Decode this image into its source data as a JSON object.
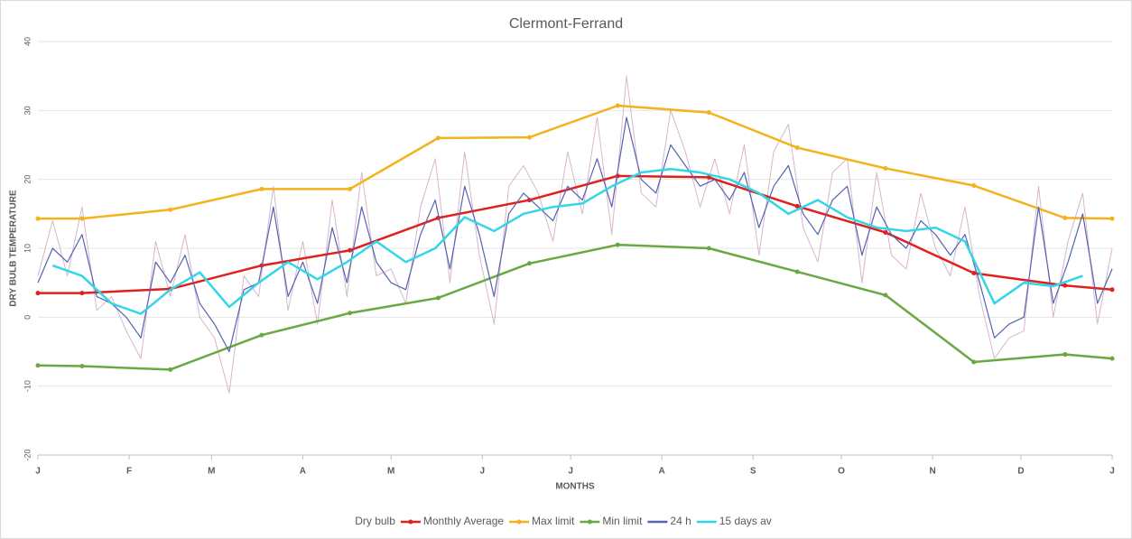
{
  "chart_data": {
    "type": "line",
    "title": "Clermont-Ferrand",
    "x_label": "MONTHS",
    "y_label": "DRY BULB TEMPERATURE",
    "xlim": [
      0,
      365
    ],
    "xticks": [
      {
        "value": 0,
        "label": "J"
      },
      {
        "value": 31,
        "label": "F"
      },
      {
        "value": 59,
        "label": "M"
      },
      {
        "value": 90,
        "label": "A"
      },
      {
        "value": 120,
        "label": "M"
      },
      {
        "value": 151,
        "label": "J"
      },
      {
        "value": 181,
        "label": "J"
      },
      {
        "value": 212,
        "label": "A"
      },
      {
        "value": 243,
        "label": "S"
      },
      {
        "value": 273,
        "label": "O"
      },
      {
        "value": 304,
        "label": "N"
      },
      {
        "value": 334,
        "label": "D"
      },
      {
        "value": 365,
        "label": "J"
      }
    ],
    "ylim": [
      -20,
      40
    ],
    "yticks": [
      -20,
      -10,
      0,
      10,
      20,
      30,
      40
    ],
    "grid": true,
    "series": [
      {
        "name": "Dry bulb",
        "color": "#cfa3bd",
        "markers": false,
        "x": [
          0,
          5,
          10,
          15,
          20,
          25,
          30,
          35,
          40,
          45,
          50,
          55,
          60,
          65,
          70,
          75,
          80,
          85,
          90,
          95,
          100,
          105,
          110,
          115,
          120,
          125,
          130,
          135,
          140,
          145,
          150,
          155,
          160,
          165,
          170,
          175,
          180,
          185,
          190,
          195,
          200,
          205,
          210,
          215,
          220,
          225,
          230,
          235,
          240,
          245,
          250,
          255,
          260,
          265,
          270,
          275,
          280,
          285,
          290,
          295,
          300,
          305,
          310,
          315,
          320,
          325,
          330,
          335,
          340,
          345,
          350,
          355,
          360,
          365
        ],
        "values": [
          6,
          14,
          6,
          16,
          1,
          3,
          -2,
          -6,
          11,
          3,
          12,
          0,
          -3,
          -11,
          6,
          3,
          19,
          1,
          11,
          -1,
          17,
          3,
          21,
          6,
          7,
          2,
          16,
          23,
          5,
          24,
          9,
          -1,
          19,
          22,
          18,
          11,
          24,
          15,
          29,
          12,
          35,
          18,
          16,
          30,
          24,
          16,
          23,
          15,
          25,
          9,
          24,
          28,
          13,
          8,
          21,
          23,
          5,
          21,
          9,
          7,
          18,
          10,
          6,
          16,
          3,
          -6,
          -3,
          -2,
          19,
          0,
          11,
          18,
          -1,
          10
        ]
      },
      {
        "name": "Monthly Average",
        "color": "#e0201c",
        "markers": true,
        "x": [
          0,
          15,
          45,
          76,
          106,
          136,
          167,
          197,
          228,
          258,
          288,
          318,
          349,
          365
        ],
        "values": [
          3.5,
          3.5,
          4.1,
          7.5,
          9.7,
          14.4,
          17,
          20.5,
          20.3,
          16.1,
          12.3,
          6.4,
          4.6,
          4
        ]
      },
      {
        "name": "Max limit",
        "color": "#f2b31d",
        "markers": true,
        "x": [
          0,
          15,
          45,
          76,
          106,
          136,
          167,
          197,
          228,
          258,
          288,
          318,
          349,
          365
        ],
        "values": [
          14.3,
          14.3,
          15.6,
          18.6,
          18.6,
          26,
          26.1,
          30.7,
          29.7,
          24.6,
          21.6,
          19.1,
          14.4,
          14.3
        ]
      },
      {
        "name": "Min limit",
        "color": "#6aa842",
        "markers": true,
        "x": [
          0,
          15,
          45,
          76,
          106,
          136,
          167,
          197,
          228,
          258,
          288,
          318,
          349,
          365
        ],
        "values": [
          -7,
          -7.1,
          -7.6,
          -2.6,
          0.6,
          2.8,
          7.8,
          10.5,
          10,
          6.6,
          3.2,
          -6.5,
          -5.4,
          -6
        ]
      },
      {
        "name": "24 h",
        "color": "#5563b0",
        "markers": false,
        "x": [
          0,
          5,
          10,
          15,
          20,
          25,
          30,
          35,
          40,
          45,
          50,
          55,
          60,
          65,
          70,
          75,
          80,
          85,
          90,
          95,
          100,
          105,
          110,
          115,
          120,
          125,
          130,
          135,
          140,
          145,
          150,
          155,
          160,
          165,
          170,
          175,
          180,
          185,
          190,
          195,
          200,
          205,
          210,
          215,
          220,
          225,
          230,
          235,
          240,
          245,
          250,
          255,
          260,
          265,
          270,
          275,
          280,
          285,
          290,
          295,
          300,
          305,
          310,
          315,
          320,
          325,
          330,
          335,
          340,
          345,
          350,
          355,
          360,
          365
        ],
        "values": [
          5,
          10,
          8,
          12,
          3,
          2,
          0,
          -3,
          8,
          5,
          9,
          2,
          -1,
          -5,
          4,
          5,
          16,
          3,
          8,
          2,
          13,
          5,
          16,
          8,
          5,
          4,
          12,
          17,
          7,
          19,
          12,
          3,
          15,
          18,
          16,
          14,
          19,
          17,
          23,
          16,
          29,
          20,
          18,
          25,
          22,
          19,
          20,
          17,
          21,
          13,
          19,
          22,
          15,
          12,
          17,
          19,
          9,
          16,
          12,
          10,
          14,
          12,
          9,
          12,
          5,
          -3,
          -1,
          0,
          16,
          2,
          8,
          15,
          2,
          7
        ]
      },
      {
        "name": "15 days av",
        "color": "#33d6e6",
        "markers": false,
        "x": [
          5,
          15,
          25,
          35,
          45,
          55,
          65,
          75,
          85,
          95,
          105,
          115,
          125,
          135,
          145,
          155,
          165,
          175,
          185,
          195,
          205,
          215,
          225,
          235,
          245,
          255,
          265,
          275,
          285,
          295,
          305,
          315,
          325,
          335,
          345,
          355
        ],
        "values": [
          7.5,
          6,
          2,
          0.5,
          4,
          6.5,
          1.5,
          5,
          8,
          5.5,
          8,
          11,
          8,
          10,
          14.5,
          12.5,
          15,
          16,
          16.5,
          19,
          21,
          21.5,
          21,
          20,
          18,
          15,
          17,
          14.5,
          13,
          12.5,
          13,
          11,
          2,
          5,
          4.5,
          6
        ]
      }
    ]
  }
}
